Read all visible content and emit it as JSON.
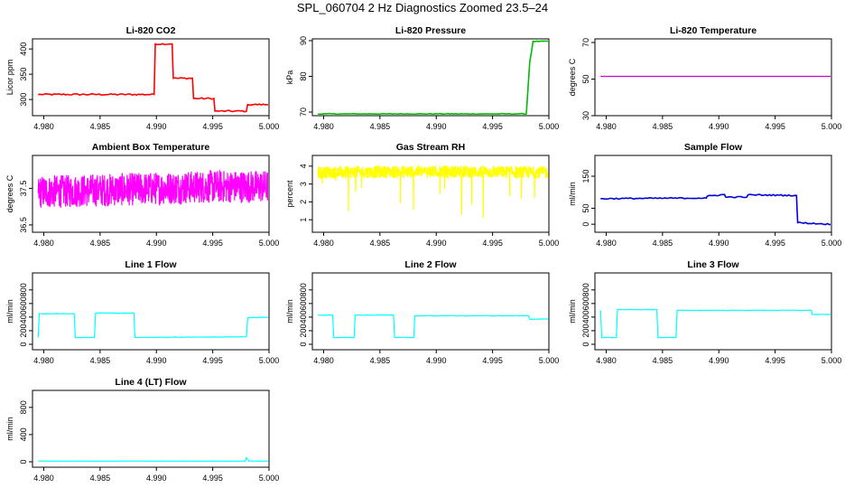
{
  "title": "SPL_060704  2 Hz Diagnostics Zoomed 23.5–24",
  "chart_data": [
    {
      "type": "line",
      "title": "Li-820 CO2",
      "xlabel": "",
      "ylabel": "Licor ppm",
      "color": "#ff0000",
      "xlim": [
        4.979,
        5.0
      ],
      "ylim": [
        268,
        420
      ],
      "xticks": [
        "4.980",
        "4.985",
        "4.990",
        "4.995",
        "5.000"
      ],
      "yticks": [
        {
          "v": 300,
          "label": "300"
        },
        {
          "v": 350,
          "label": "350"
        },
        {
          "v": 400,
          "label": "400"
        }
      ],
      "series": [
        {
          "x": [
            4.9795,
            4.9898,
            4.9899,
            4.9914,
            4.9915,
            4.9932,
            4.9933,
            4.9951,
            4.9952,
            4.998,
            4.9981,
            5.0
          ],
          "y": [
            310,
            310,
            410,
            410,
            342,
            342,
            302,
            302,
            277,
            277,
            290,
            290
          ]
        }
      ],
      "noise": 3,
      "markers": true
    },
    {
      "type": "line",
      "title": "Li-820 Pressure",
      "xlabel": "",
      "ylabel": "kPa",
      "color": "#00bb00",
      "xlim": [
        4.979,
        5.0
      ],
      "ylim": [
        69,
        90.5
      ],
      "xticks": [
        "4.980",
        "4.985",
        "4.990",
        "4.995",
        "5.000"
      ],
      "yticks": [
        {
          "v": 70,
          "label": "70"
        },
        {
          "v": 80,
          "label": "80"
        },
        {
          "v": 90,
          "label": "90"
        }
      ],
      "series": [
        {
          "x": [
            4.9795,
            4.9973,
            4.998,
            4.9983,
            4.9986,
            5.0
          ],
          "y": [
            69.5,
            69.5,
            69.5,
            84.0,
            89.8,
            89.8
          ]
        }
      ],
      "noise": 0.2,
      "markers": true
    },
    {
      "type": "line",
      "title": "Li-820 Temperature",
      "xlabel": "",
      "ylabel": "degrees C",
      "color": "#cc00cc",
      "xlim": [
        4.979,
        5.0
      ],
      "ylim": [
        30,
        72
      ],
      "xticks": [
        "4.980",
        "4.985",
        "4.990",
        "4.995",
        "5.000"
      ],
      "yticks": [
        {
          "v": 30,
          "label": "30"
        },
        {
          "v": 50,
          "label": "50"
        },
        {
          "v": 70,
          "label": "70"
        }
      ],
      "series": [
        {
          "x": [
            4.9795,
            5.0
          ],
          "y": [
            51.5,
            51.5
          ]
        }
      ],
      "noise": 0,
      "markers": false
    },
    {
      "type": "line",
      "title": "Ambient Box Temperature",
      "xlabel": "",
      "ylabel": "degrees C",
      "color": "#ff00ff",
      "xlim": [
        4.979,
        5.0
      ],
      "ylim": [
        36.3,
        38.4
      ],
      "xticks": [
        "4.980",
        "4.985",
        "4.990",
        "4.995",
        "5.000"
      ],
      "yticks": [
        {
          "v": 36.5,
          "label": "36.5"
        },
        {
          "v": 37.5,
          "label": "37.5"
        }
      ],
      "series": [
        {
          "x": [
            4.9795,
            4.985,
            4.99,
            4.995,
            5.0
          ],
          "y": [
            37.4,
            37.45,
            37.5,
            37.55,
            37.55
          ]
        }
      ],
      "noise": 0.45,
      "dense": true,
      "markers": false
    },
    {
      "type": "line",
      "title": "Gas Stream RH",
      "xlabel": "",
      "ylabel": "percent",
      "color": "#ffff00",
      "xlim": [
        4.979,
        5.0
      ],
      "ylim": [
        0.3,
        4.6
      ],
      "xticks": [
        "4.980",
        "4.985",
        "4.990",
        "4.995",
        "5.000"
      ],
      "yticks": [
        {
          "v": 1,
          "label": "1"
        },
        {
          "v": 2,
          "label": "2"
        },
        {
          "v": 3,
          "label": "3"
        },
        {
          "v": 4,
          "label": "4"
        }
      ],
      "series": [
        {
          "x": [
            4.9795,
            4.99,
            5.0
          ],
          "y": [
            3.65,
            3.7,
            3.65
          ]
        }
      ],
      "noise": 0.35,
      "dense": true,
      "spikes": true,
      "markers": false
    },
    {
      "type": "line",
      "title": "Sample Flow",
      "xlabel": "",
      "ylabel": "ml/min",
      "color": "#0000dd",
      "xlim": [
        4.979,
        5.0
      ],
      "ylim": [
        -25,
        215
      ],
      "xticks": [
        "4.980",
        "4.985",
        "4.990",
        "4.995",
        "5.000"
      ],
      "yticks": [
        {
          "v": 0,
          "label": "0"
        },
        {
          "v": 50,
          "label": "50"
        },
        {
          "v": 150,
          "label": "150"
        }
      ],
      "series": [
        {
          "x": [
            4.9795,
            4.9889,
            4.989,
            4.9905,
            4.9906,
            4.9925,
            4.9926,
            4.9969,
            4.997,
            5.0
          ],
          "y": [
            80,
            82,
            88,
            93,
            85,
            85,
            92,
            90,
            5,
            0
          ]
        }
      ],
      "noise": 4,
      "markers": true
    },
    {
      "type": "line",
      "title": "Line 1 Flow",
      "xlabel": "",
      "ylabel": "ml/min",
      "color": "#00ffff",
      "xlim": [
        4.979,
        5.0
      ],
      "ylim": [
        -80,
        1050
      ],
      "xticks": [
        "4.980",
        "4.985",
        "4.990",
        "4.995",
        "5.000"
      ],
      "yticks": [
        {
          "v": 0,
          "label": "0"
        },
        {
          "v": 200,
          "label": "200"
        },
        {
          "v": 400,
          "label": "400"
        },
        {
          "v": 600,
          "label": "600"
        },
        {
          "v": 800,
          "label": "800"
        }
      ],
      "series": [
        {
          "x": [
            4.9795,
            4.9796,
            4.9827,
            4.9828,
            4.9845,
            4.9846,
            4.988,
            4.9881,
            4.998,
            4.9981,
            5.0
          ],
          "y": [
            100,
            450,
            450,
            100,
            100,
            460,
            460,
            100,
            110,
            390,
            400
          ]
        }
      ],
      "noise": 6,
      "markers": false
    },
    {
      "type": "line",
      "title": "Line 2 Flow",
      "xlabel": "",
      "ylabel": "ml/min",
      "color": "#00ffff",
      "xlim": [
        4.979,
        5.0
      ],
      "ylim": [
        -80,
        1050
      ],
      "xticks": [
        "4.980",
        "4.985",
        "4.990",
        "4.995",
        "5.000"
      ],
      "yticks": [
        {
          "v": 0,
          "label": "0"
        },
        {
          "v": 200,
          "label": "200"
        },
        {
          "v": 400,
          "label": "400"
        },
        {
          "v": 600,
          "label": "600"
        },
        {
          "v": 800,
          "label": "800"
        }
      ],
      "series": [
        {
          "x": [
            4.9795,
            4.9808,
            4.9809,
            4.9827,
            4.9828,
            4.9862,
            4.9863,
            4.988,
            4.9881,
            4.9982,
            4.9983,
            5.0
          ],
          "y": [
            430,
            430,
            100,
            100,
            430,
            430,
            100,
            100,
            420,
            420,
            370,
            370
          ]
        }
      ],
      "noise": 6,
      "markers": false
    },
    {
      "type": "line",
      "title": "Line 3 Flow",
      "xlabel": "",
      "ylabel": "ml/min",
      "color": "#00ffff",
      "xlim": [
        4.979,
        5.0
      ],
      "ylim": [
        -80,
        1050
      ],
      "xticks": [
        "4.980",
        "4.985",
        "4.990",
        "4.995",
        "5.000"
      ],
      "yticks": [
        {
          "v": 0,
          "label": "0"
        },
        {
          "v": 200,
          "label": "200"
        },
        {
          "v": 400,
          "label": "400"
        },
        {
          "v": 600,
          "label": "600"
        },
        {
          "v": 800,
          "label": "800"
        }
      ],
      "series": [
        {
          "x": [
            4.9795,
            4.9796,
            4.9809,
            4.981,
            4.9845,
            4.9846,
            4.9862,
            4.9863,
            4.9982,
            4.9983,
            5.0
          ],
          "y": [
            500,
            100,
            100,
            510,
            510,
            100,
            100,
            500,
            500,
            440,
            440
          ]
        }
      ],
      "noise": 6,
      "markers": false
    },
    {
      "type": "line",
      "title": "Line 4 (LT) Flow",
      "xlabel": "",
      "ylabel": "ml/min",
      "color": "#00ffff",
      "xlim": [
        4.979,
        5.0
      ],
      "ylim": [
        -80,
        1050
      ],
      "xticks": [
        "4.980",
        "4.985",
        "4.990",
        "4.995",
        "5.000"
      ],
      "yticks": [
        {
          "v": 0,
          "label": "0"
        },
        {
          "v": 400,
          "label": "400"
        },
        {
          "v": 800,
          "label": "800"
        }
      ],
      "series": [
        {
          "x": [
            4.9795,
            4.9979,
            4.998,
            4.9982,
            5.0
          ],
          "y": [
            10,
            10,
            60,
            10,
            10
          ]
        }
      ],
      "noise": 2,
      "markers": false
    }
  ]
}
